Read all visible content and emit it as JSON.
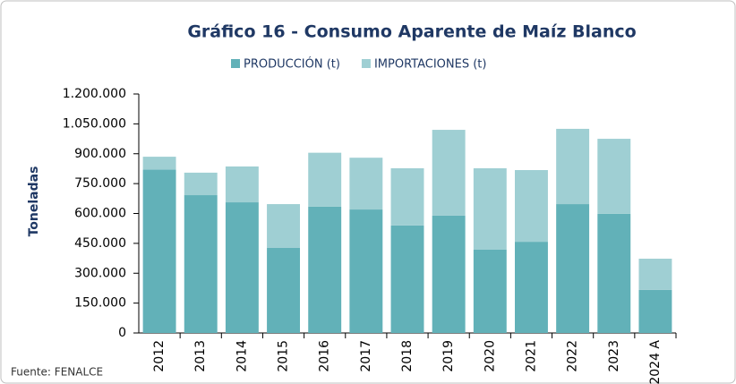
{
  "chart_data": {
    "type": "stacked_bar",
    "title": "Gráfico 16 - Consumo Aparente de Maíz Blanco",
    "y_label": "Toneladas",
    "source": "Fuente: FENALCE",
    "categories": [
      "2012",
      "2013",
      "2014",
      "2015",
      "2016",
      "2017",
      "2018",
      "2019",
      "2020",
      "2021",
      "2022",
      "2023",
      "2024 A"
    ],
    "series": [
      {
        "name": "PRODUCCIÓN (t)",
        "color": "#62b1b8",
        "values": [
          820000,
          692000,
          656000,
          427000,
          634000,
          620000,
          540000,
          589000,
          418000,
          458000,
          647000,
          598000,
          216000
        ]
      },
      {
        "name": "IMPORTACIONES (t)",
        "color": "#9fcfd3",
        "values": [
          65000,
          113000,
          180000,
          220000,
          271000,
          260000,
          287000,
          431000,
          409000,
          360000,
          378000,
          377000,
          157000
        ]
      }
    ],
    "ylim": [
      0,
      1200000
    ],
    "yticks": [
      0,
      {
        "value": 150000,
        "label": "150.000"
      },
      {
        "value": 300000,
        "label": "300.000"
      },
      {
        "value": 450000,
        "label": "450.000"
      },
      {
        "value": 600000,
        "label": "600.000"
      },
      {
        "value": 750000,
        "label": "750.000"
      },
      {
        "value": 900000,
        "label": "900.000"
      },
      {
        "value": 1050000,
        "label": "1.050.000"
      },
      {
        "value": 1200000,
        "label": "1.200.000"
      }
    ],
    "legend": "top"
  }
}
